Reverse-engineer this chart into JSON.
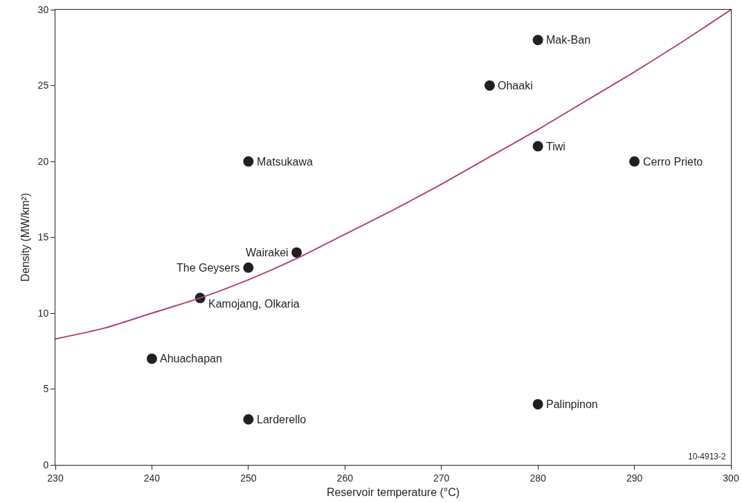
{
  "chart_data": {
    "type": "scatter",
    "xlabel": "Reservoir temperature (°C)",
    "ylabel": "Density (MW/km²)",
    "xlim": [
      230,
      300
    ],
    "xticks": [
      230,
      240,
      250,
      260,
      270,
      280,
      290,
      300
    ],
    "ylim": [
      0,
      30
    ],
    "yticks": [
      0,
      5,
      10,
      15,
      20,
      25,
      30
    ],
    "grid": false,
    "marker": "circle",
    "annotations": [
      "10-4913-2",
      {
        "text": "Ahuachapan",
        "x": 240,
        "y": 7
      },
      {
        "text": "Larderello",
        "x": 250,
        "y": 3
      },
      {
        "text": "Kamojang, Olkaria",
        "x": 245,
        "y": 11
      },
      {
        "text": "The Geysers",
        "x": 250,
        "y": 13
      },
      {
        "text": "Wairakei",
        "x": 255,
        "y": 14
      },
      {
        "text": "Matsukawa",
        "x": 250,
        "y": 20
      },
      {
        "text": "Ohaaki",
        "x": 275,
        "y": 25
      },
      {
        "text": "Mak-Ban",
        "x": 280,
        "y": 28
      },
      {
        "text": "Tiwi",
        "x": 280,
        "y": 21
      },
      {
        "text": "Palinpinon",
        "x": 280,
        "y": 4
      },
      {
        "text": "Cerro Prieto",
        "x": 290,
        "y": 20
      }
    ],
    "series": [
      {
        "type": "line",
        "color": "#b0407f",
        "line_style": "solid",
        "marker": "none",
        "x": [
          230,
          235,
          240,
          245,
          250,
          255,
          260,
          265,
          270,
          275,
          280,
          285,
          290,
          295,
          300
        ],
        "values": [
          8.3,
          9.0,
          10.0,
          11.0,
          12.2,
          13.6,
          15.2,
          16.8,
          18.5,
          20.3,
          22.1,
          24.0,
          25.9,
          27.9,
          30.0
        ]
      },
      {
        "color": "#231f20",
        "x": [
          240,
          250,
          245,
          250,
          255,
          250,
          275,
          280,
          280,
          280,
          290
        ],
        "values": [
          7,
          3,
          11,
          13,
          14,
          20,
          25,
          28,
          21,
          4,
          20
        ]
      }
    ]
  }
}
